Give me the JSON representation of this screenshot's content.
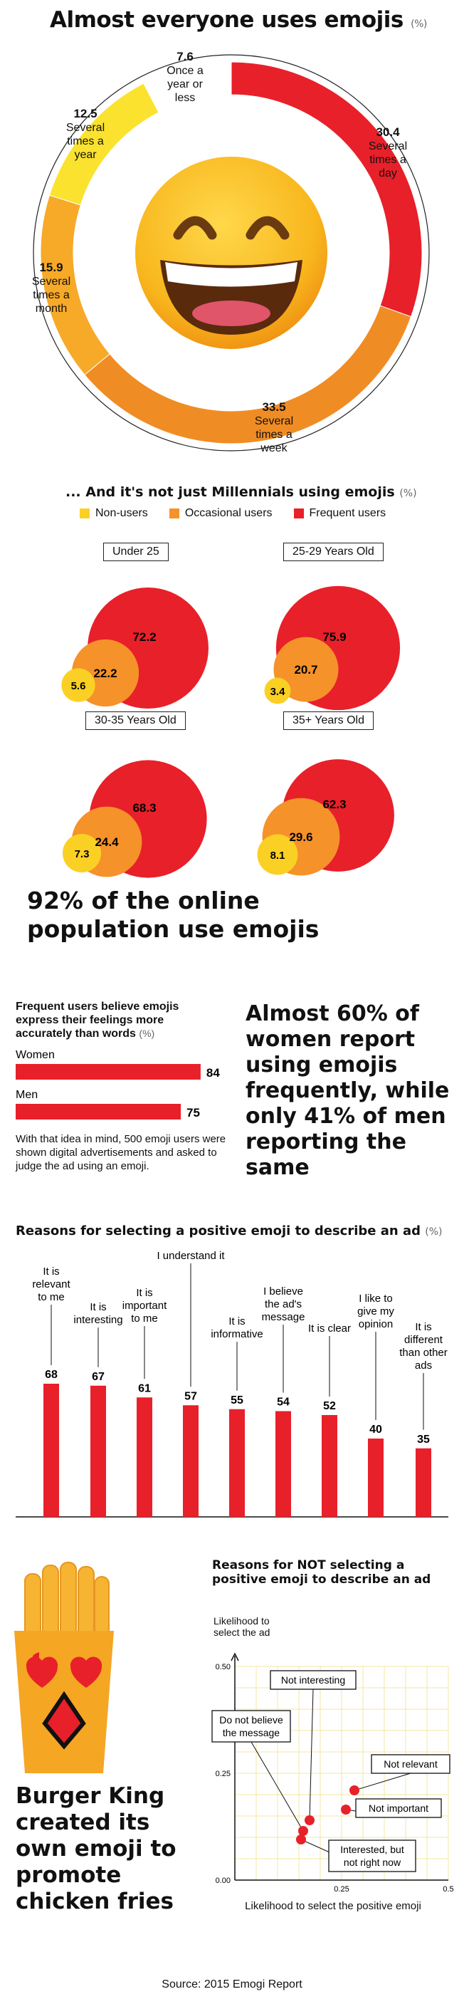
{
  "chart_data": [
    {
      "type": "pie",
      "title": "Almost everyone uses emojis",
      "unit": "(%)",
      "slices": [
        {
          "value": "30.4",
          "label": "Several times a day",
          "color": "#e8202a"
        },
        {
          "value": "33.5",
          "label": "Several times a week",
          "color": "#f08c24"
        },
        {
          "value": "15.9",
          "label": "Several times a month",
          "color": "#f7a928"
        },
        {
          "value": "12.5",
          "label": "Several times a year",
          "color": "#fbe22e"
        },
        {
          "value": "7.6",
          "label": "Once a year or less",
          "color": "#ffffff"
        }
      ]
    },
    {
      "type": "bubble",
      "title": "... And it's not just Millennials using emojis",
      "unit": "(%)",
      "legend": [
        {
          "name": "Non-users",
          "color": "#fbd024"
        },
        {
          "name": "Occasional users",
          "color": "#f5922a"
        },
        {
          "name": "Frequent users",
          "color": "#e8202a"
        }
      ],
      "groups": [
        {
          "label": "Under 25",
          "non": "5.6",
          "occasional": "22.2",
          "frequent": "72.2"
        },
        {
          "label": "25-29 Years Old",
          "non": "3.4",
          "occasional": "20.7",
          "frequent": "75.9"
        },
        {
          "label": "30-35 Years Old",
          "non": "7.3",
          "occasional": "24.4",
          "frequent": "68.3"
        },
        {
          "label": "35+ Years Old",
          "non": "8.1",
          "occasional": "29.6",
          "frequent": "62.3"
        }
      ]
    },
    {
      "type": "bar",
      "title": "Frequent users believe emojis express their feelings more accurately than words",
      "unit": "(%)",
      "categories": [
        "Women",
        "Men"
      ],
      "values": [
        "84",
        "75"
      ],
      "color": "#e8202a"
    },
    {
      "type": "bar",
      "title": "Reasons for selecting a positive emoji to describe an ad",
      "unit": "(%)",
      "categories": [
        "It is relevant to me",
        "It is interesting",
        "It is important to me",
        "I understand it",
        "It is informative",
        "I believe the ad's message",
        "It is clear",
        "I like to give my opinion",
        "It is different than other ads"
      ],
      "values": [
        "68",
        "67",
        "61",
        "57",
        "55",
        "54",
        "52",
        "40",
        "35"
      ],
      "color": "#e8202a"
    },
    {
      "type": "scatter",
      "title": "Reasons for NOT selecting a positive emoji to describe an ad",
      "ylabel": "Likelihood to select the ad",
      "xlabel": "Likelihood to select the positive emoji",
      "xticks": [
        "0.25",
        "0.5"
      ],
      "yticks": [
        "0.00",
        "0.25",
        "0.50"
      ],
      "xlim": [
        0,
        0.5
      ],
      "ylim": [
        0,
        0.5
      ],
      "points": [
        {
          "label": "Not interesting",
          "x": 0.175,
          "y": 0.14
        },
        {
          "label": "Do not believe the message",
          "x": 0.16,
          "y": 0.115
        },
        {
          "label": "Interested, but not right now",
          "x": 0.155,
          "y": 0.095
        },
        {
          "label": "Not relevant",
          "x": 0.28,
          "y": 0.21
        },
        {
          "label": "Not important",
          "x": 0.26,
          "y": 0.165
        }
      ]
    }
  ],
  "stat_92": "92% of the online population use emojis",
  "women_stat": "Almost 60% of women report using emojis frequently, while only 41% of men reporting the same",
  "bar_note": "With that idea in mind, 500 emoji users were shown digital advertisements and asked to judge the ad using an emoji.",
  "bk_text": "Burger King created its own emoji to promote chicken fries",
  "source": "Source: 2015 Emogi Report"
}
